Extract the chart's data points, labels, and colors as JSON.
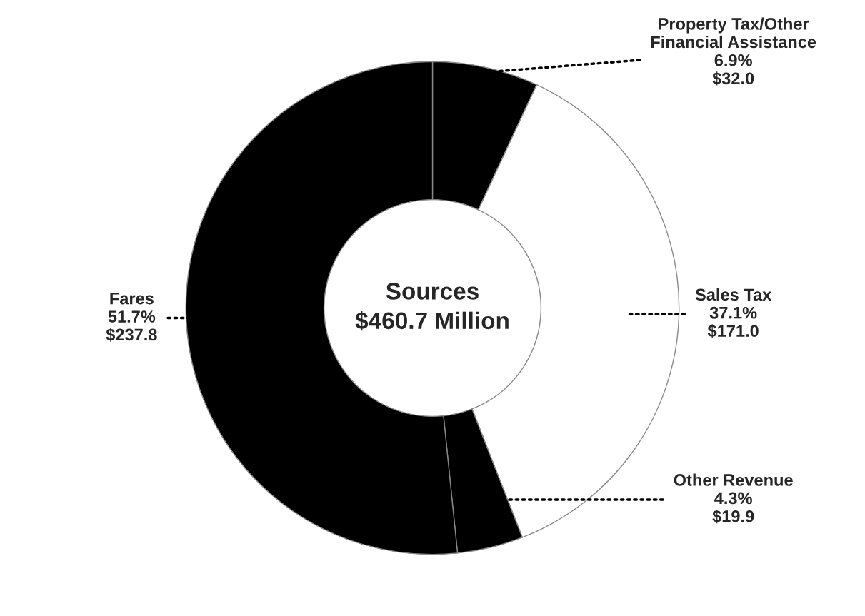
{
  "chart_data": {
    "type": "donut",
    "title": "Sources",
    "subtitle": "$460.7 Million",
    "categories": [
      "Property Tax/Other\nFinancial Assistance",
      "Sales Tax",
      "Other Revenue",
      "Fares"
    ],
    "values": [
      32.0,
      171.0,
      19.9,
      237.8
    ],
    "value_labels": [
      "6.9%\n$32.0",
      "37.1%\n$171.0",
      "4.3%\n$19.9",
      "51.7%\n$237.8"
    ],
    "colors": [
      "#000000",
      "#ffffff",
      "#000000",
      "#000000"
    ],
    "legend": false
  }
}
